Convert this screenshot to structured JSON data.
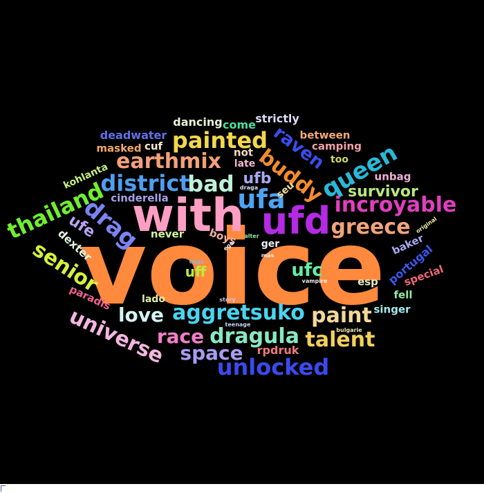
{
  "words": [
    {
      "text": "voice",
      "color": "#ff8a3d"
    },
    {
      "text": "with",
      "color": "#ff9ec4"
    },
    {
      "text": "ufd",
      "color": "#b42be3"
    },
    {
      "text": "ufa",
      "color": "#4fa3f0"
    },
    {
      "text": "district",
      "color": "#4f9ef0"
    },
    {
      "text": "earthmix",
      "color": "#f4a07a"
    },
    {
      "text": "painted",
      "color": "#f2d84a"
    },
    {
      "text": "bad",
      "color": "#bff0d8"
    },
    {
      "text": "buddy",
      "color": "#f28c2c"
    },
    {
      "text": "raven",
      "color": "#3a4df0"
    },
    {
      "text": "queen",
      "color": "#27b9d9"
    },
    {
      "text": "thailand",
      "color": "#6ef02f"
    },
    {
      "text": "drag",
      "color": "#7a84f4"
    },
    {
      "text": "senior",
      "color": "#d6f03a"
    },
    {
      "text": "universe",
      "color": "#f4b6e0"
    },
    {
      "text": "love",
      "color": "#d4f4f4"
    },
    {
      "text": "aggretsuko",
      "color": "#4ad4f0"
    },
    {
      "text": "paint",
      "color": "#f2d99a"
    },
    {
      "text": "race",
      "color": "#f47ec8"
    },
    {
      "text": "dragula",
      "color": "#88e8c4"
    },
    {
      "text": "talent",
      "color": "#f2d05a"
    },
    {
      "text": "space",
      "color": "#a89cf0"
    },
    {
      "text": "unlocked",
      "color": "#3a4af0"
    },
    {
      "text": "incroyable",
      "color": "#e23ec0"
    },
    {
      "text": "greece",
      "color": "#f2a47a"
    },
    {
      "text": "survivor",
      "color": "#b8e87a"
    },
    {
      "text": "ufc",
      "color": "#5ef0a8"
    },
    {
      "text": "ufe",
      "color": "#b8a4f0"
    },
    {
      "text": "ufb",
      "color": "#a8a8f0"
    },
    {
      "text": "uff",
      "color": "#b8f03a"
    },
    {
      "text": "strictly",
      "color": "#dcdcf8"
    },
    {
      "text": "dancing",
      "color": "#e8f4d8"
    },
    {
      "text": "come",
      "color": "#48e0a0"
    },
    {
      "text": "deadwater",
      "color": "#6070e8"
    },
    {
      "text": "masked",
      "color": "#f2a86a"
    },
    {
      "text": "cuf",
      "color": "#f8e8d0"
    },
    {
      "text": "not",
      "color": "#f2d8c0"
    },
    {
      "text": "late",
      "color": "#f4b8d0"
    },
    {
      "text": "between",
      "color": "#f2a87a"
    },
    {
      "text": "camping",
      "color": "#f0a0a8"
    },
    {
      "text": "too",
      "color": "#d0d860"
    },
    {
      "text": "unbag",
      "color": "#f0b0d8"
    },
    {
      "text": "kohlanta",
      "color": "#c8f080"
    },
    {
      "text": "cinderella",
      "color": "#a8a0e8"
    },
    {
      "text": "seu",
      "color": "#f0e0a0"
    },
    {
      "text": "draga",
      "color": "#d8e0f8"
    },
    {
      "text": "original",
      "color": "#f0f0a0"
    },
    {
      "text": "dexter",
      "color": "#e0f4e0"
    },
    {
      "text": "never",
      "color": "#d8f4a0"
    },
    {
      "text": "boys",
      "color": "#f4b0a0"
    },
    {
      "text": "ger",
      "color": "#f0f0f0"
    },
    {
      "text": "ego",
      "color": "#f0f0f0"
    },
    {
      "text": "alter",
      "color": "#88e8a8"
    },
    {
      "text": "más",
      "color": "#f0f0f0"
    },
    {
      "text": "baker",
      "color": "#a8a8f0"
    },
    {
      "text": "portugal",
      "color": "#3a58f0"
    },
    {
      "text": "special",
      "color": "#f06878"
    },
    {
      "text": "usgs",
      "color": "#88b8e8"
    },
    {
      "text": "vampire",
      "color": "#f0f0f0"
    },
    {
      "text": "esp",
      "color": "#e8e8c0"
    },
    {
      "text": "fell",
      "color": "#98e8a0"
    },
    {
      "text": "singer",
      "color": "#a0e8e8"
    },
    {
      "text": "paradis",
      "color": "#f06090"
    },
    {
      "text": "lado",
      "color": "#e0f0a8"
    },
    {
      "text": "story",
      "color": "#c8c8e8"
    },
    {
      "text": "teenage",
      "color": "#c8d0f0"
    },
    {
      "text": "bulgarie",
      "color": "#f0e8b0"
    },
    {
      "text": "rpdruk",
      "color": "#f07878"
    }
  ]
}
